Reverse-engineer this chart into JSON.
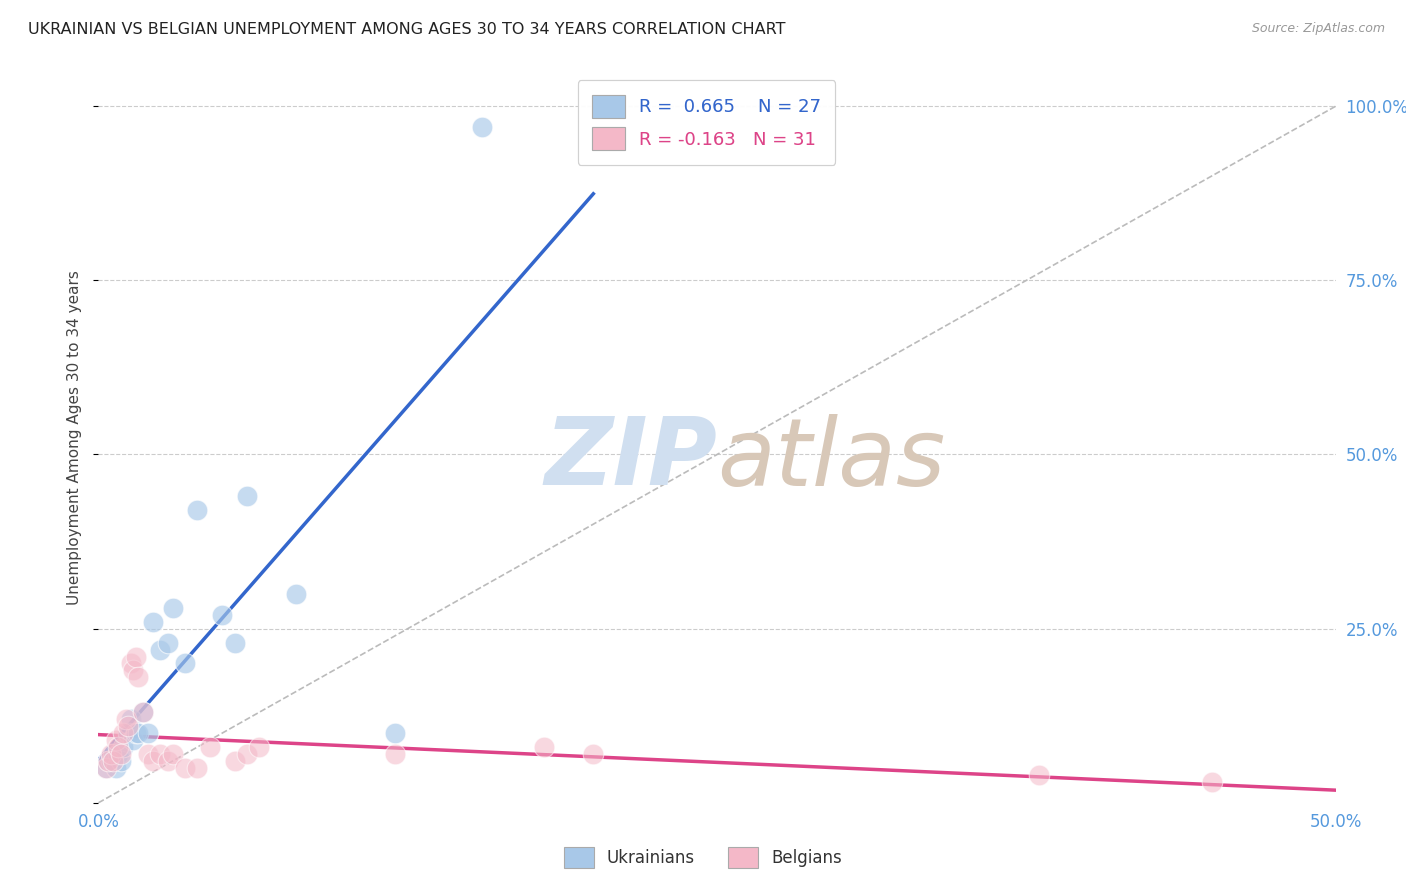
{
  "title": "UKRAINIAN VS BELGIAN UNEMPLOYMENT AMONG AGES 30 TO 34 YEARS CORRELATION CHART",
  "source": "Source: ZipAtlas.com",
  "ylabel": "Unemployment Among Ages 30 to 34 years",
  "xlim": [
    0.0,
    0.5
  ],
  "ylim": [
    0.0,
    1.05
  ],
  "xtick_vals": [
    0.0,
    0.5
  ],
  "xtick_labels": [
    "0.0%",
    "50.0%"
  ],
  "ytick_vals": [
    0.0,
    0.25,
    0.5,
    0.75,
    1.0
  ],
  "ytick_labels_right": [
    "",
    "25.0%",
    "50.0%",
    "75.0%",
    "100.0%"
  ],
  "ukrainian_color": "#a8c8e8",
  "belgian_color": "#f4b8c8",
  "ukrainian_line_color": "#3366cc",
  "belgian_line_color": "#dd4488",
  "diagonal_color": "#bbbbbb",
  "watermark_zip_color": "#d0dff0",
  "watermark_atlas_color": "#d8c8b8",
  "background_color": "#ffffff",
  "grid_color": "#cccccc",
  "title_color": "#222222",
  "tick_color": "#5599dd",
  "source_color": "#999999",
  "legend_R_ukr_color": "#3366cc",
  "legend_N_ukr_color": "#3366cc",
  "legend_R_bel_color": "#dd4488",
  "legend_N_bel_color": "#dd4488",
  "ukr_x": [
    0.003,
    0.004,
    0.005,
    0.006,
    0.007,
    0.008,
    0.009,
    0.01,
    0.012,
    0.013,
    0.014,
    0.015,
    0.016,
    0.018,
    0.02,
    0.022,
    0.025,
    0.028,
    0.03,
    0.035,
    0.04,
    0.05,
    0.055,
    0.06,
    0.08,
    0.12,
    0.155
  ],
  "ukr_y": [
    0.05,
    0.06,
    0.06,
    0.07,
    0.05,
    0.07,
    0.06,
    0.08,
    0.1,
    0.12,
    0.09,
    0.1,
    0.1,
    0.13,
    0.1,
    0.26,
    0.22,
    0.23,
    0.28,
    0.2,
    0.42,
    0.27,
    0.23,
    0.44,
    0.3,
    0.1,
    0.97
  ],
  "bel_x": [
    0.003,
    0.004,
    0.005,
    0.006,
    0.007,
    0.008,
    0.009,
    0.01,
    0.011,
    0.012,
    0.013,
    0.014,
    0.015,
    0.016,
    0.018,
    0.02,
    0.022,
    0.025,
    0.028,
    0.03,
    0.035,
    0.04,
    0.045,
    0.055,
    0.06,
    0.065,
    0.12,
    0.18,
    0.2,
    0.38,
    0.45
  ],
  "bel_y": [
    0.05,
    0.06,
    0.07,
    0.06,
    0.09,
    0.08,
    0.07,
    0.1,
    0.12,
    0.11,
    0.2,
    0.19,
    0.21,
    0.18,
    0.13,
    0.07,
    0.06,
    0.07,
    0.06,
    0.07,
    0.05,
    0.05,
    0.08,
    0.06,
    0.07,
    0.08,
    0.07,
    0.08,
    0.07,
    0.04,
    0.03
  ]
}
